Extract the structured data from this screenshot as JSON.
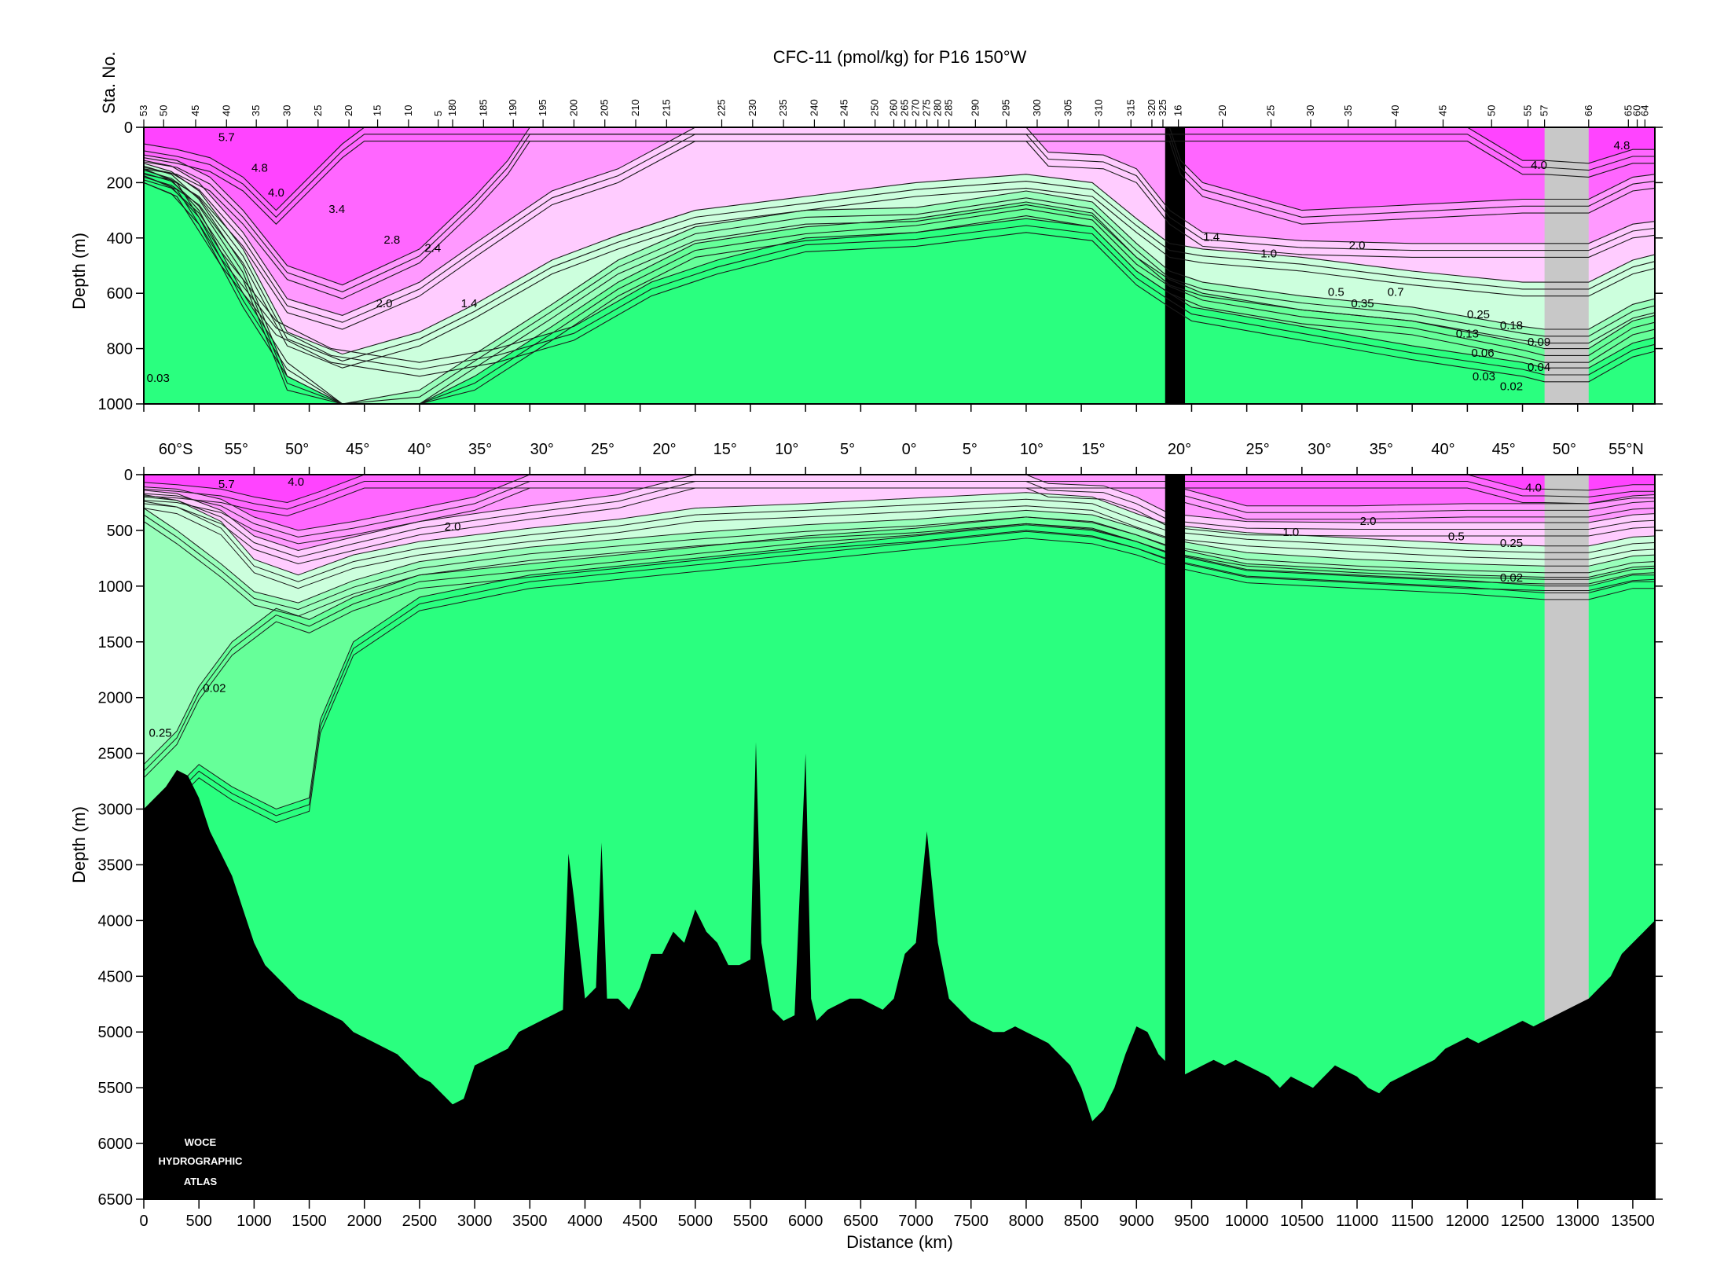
{
  "chart_data": {
    "type": "contour-section",
    "title": "CFC-11 (pmol/kg) for P16 150°W",
    "xlabel": "Distance (km)",
    "ylabel": "Depth (m)",
    "station_axis_label": "Sta. No.",
    "xlim": [
      0,
      13700
    ],
    "x_ticks": [
      0,
      500,
      1000,
      1500,
      2000,
      2500,
      3000,
      3500,
      4000,
      4500,
      5000,
      5500,
      6000,
      6500,
      7000,
      7500,
      8000,
      8500,
      9000,
      9500,
      10000,
      10500,
      11000,
      11500,
      12000,
      12500,
      13000,
      13500
    ],
    "colors": {
      "deep_magenta": "#ff44ff",
      "magenta": "#ff66ff",
      "light_magenta": "#ff99ff",
      "pale_magenta": "#ffccff",
      "pale_green": "#ccffdd",
      "light_green": "#99ffbb",
      "mid_green": "#66ff99",
      "green": "#2aff7f",
      "bathymetry": "#000000",
      "missing": "#c8c8c8",
      "contour": "#1a1a1a"
    },
    "stations": [
      {
        "label": "53",
        "km": 0
      },
      {
        "label": "50",
        "km": 180
      },
      {
        "label": "45",
        "km": 470
      },
      {
        "label": "40",
        "km": 750
      },
      {
        "label": "35",
        "km": 1020
      },
      {
        "label": "30",
        "km": 1300
      },
      {
        "label": "25",
        "km": 1580
      },
      {
        "label": "20",
        "km": 1860
      },
      {
        "label": "15",
        "km": 2120
      },
      {
        "label": "10",
        "km": 2400
      },
      {
        "label": "5",
        "km": 2670
      },
      {
        "label": "180",
        "km": 2800
      },
      {
        "label": "185",
        "km": 3080
      },
      {
        "label": "190",
        "km": 3350
      },
      {
        "label": "195",
        "km": 3620
      },
      {
        "label": "200",
        "km": 3900
      },
      {
        "label": "205",
        "km": 4180
      },
      {
        "label": "210",
        "km": 4460
      },
      {
        "label": "215",
        "km": 4740
      },
      {
        "label": "225",
        "km": 5240
      },
      {
        "label": "230",
        "km": 5520
      },
      {
        "label": "235",
        "km": 5800
      },
      {
        "label": "240",
        "km": 6080
      },
      {
        "label": "245",
        "km": 6350
      },
      {
        "label": "250",
        "km": 6630
      },
      {
        "label": "260",
        "km": 6800
      },
      {
        "label": "265",
        "km": 6900
      },
      {
        "label": "270",
        "km": 7000
      },
      {
        "label": "275",
        "km": 7100
      },
      {
        "label": "280",
        "km": 7200
      },
      {
        "label": "285",
        "km": 7300
      },
      {
        "label": "290",
        "km": 7540
      },
      {
        "label": "295",
        "km": 7820
      },
      {
        "label": "300",
        "km": 8100
      },
      {
        "label": "305",
        "km": 8380
      },
      {
        "label": "310",
        "km": 8660
      },
      {
        "label": "315",
        "km": 8950
      },
      {
        "label": "320",
        "km": 9140
      },
      {
        "label": "325",
        "km": 9240
      },
      {
        "label": "16",
        "km": 9380
      },
      {
        "label": "20",
        "km": 9780
      },
      {
        "label": "25",
        "km": 10220
      },
      {
        "label": "30",
        "km": 10580
      },
      {
        "label": "35",
        "km": 10920
      },
      {
        "label": "40",
        "km": 11350
      },
      {
        "label": "45",
        "km": 11780
      },
      {
        "label": "50",
        "km": 12220
      },
      {
        "label": "55",
        "km": 12550
      },
      {
        "label": "57",
        "km": 12700
      },
      {
        "label": "66",
        "km": 13100
      },
      {
        "label": "65",
        "km": 13460
      },
      {
        "label": "60",
        "km": 13540
      },
      {
        "label": "64",
        "km": 13610
      }
    ],
    "latitudes": [
      {
        "label": "60°S",
        "km": 290
      },
      {
        "label": "55°",
        "km": 840
      },
      {
        "label": "50°",
        "km": 1390
      },
      {
        "label": "45°",
        "km": 1940
      },
      {
        "label": "40°",
        "km": 2500
      },
      {
        "label": "35°",
        "km": 3050
      },
      {
        "label": "30°",
        "km": 3610
      },
      {
        "label": "25°",
        "km": 4160
      },
      {
        "label": "20°",
        "km": 4720
      },
      {
        "label": "15°",
        "km": 5270
      },
      {
        "label": "10°",
        "km": 5830
      },
      {
        "label": "5°",
        "km": 6380
      },
      {
        "label": "0°",
        "km": 6940
      },
      {
        "label": "5°",
        "km": 7490
      },
      {
        "label": "10°",
        "km": 8050
      },
      {
        "label": "15°",
        "km": 8610
      },
      {
        "label": "20°",
        "km": 9390
      },
      {
        "label": "25°",
        "km": 10100
      },
      {
        "label": "30°",
        "km": 10660
      },
      {
        "label": "35°",
        "km": 11220
      },
      {
        "label": "40°",
        "km": 11780
      },
      {
        "label": "45°",
        "km": 12330
      },
      {
        "label": "50°",
        "km": 12880
      },
      {
        "label": "55°N",
        "km": 13440
      }
    ],
    "panels": [
      {
        "name": "upper",
        "ylim": [
          1000,
          0
        ],
        "y_ticks": [
          0,
          200,
          400,
          600,
          800,
          1000
        ],
        "contour_labels": [
          {
            "text": "5.7",
            "km": 750,
            "depth": 50
          },
          {
            "text": "4.8",
            "km": 1050,
            "depth": 160
          },
          {
            "text": "4.0",
            "km": 1200,
            "depth": 250
          },
          {
            "text": "3.4",
            "km": 1750,
            "depth": 310
          },
          {
            "text": "2.8",
            "km": 2250,
            "depth": 420
          },
          {
            "text": "2.4",
            "km": 2620,
            "depth": 450
          },
          {
            "text": "2.0",
            "km": 2180,
            "depth": 650
          },
          {
            "text": "1.4",
            "km": 2950,
            "depth": 650
          },
          {
            "text": "0.03",
            "km": 130,
            "depth": 920
          },
          {
            "text": "1.4",
            "km": 9680,
            "depth": 410
          },
          {
            "text": "1.0",
            "km": 10200,
            "depth": 470
          },
          {
            "text": "2.0",
            "km": 11000,
            "depth": 440
          },
          {
            "text": "4.0",
            "km": 12650,
            "depth": 150
          },
          {
            "text": "4.8",
            "km": 13400,
            "depth": 80
          },
          {
            "text": "0.5",
            "km": 10810,
            "depth": 610
          },
          {
            "text": "0.7",
            "km": 11350,
            "depth": 610
          },
          {
            "text": "0.35",
            "km": 11050,
            "depth": 650
          },
          {
            "text": "0.25",
            "km": 12100,
            "depth": 690
          },
          {
            "text": "0.18",
            "km": 12400,
            "depth": 730
          },
          {
            "text": "0.13",
            "km": 12000,
            "depth": 760
          },
          {
            "text": "0.09",
            "km": 12650,
            "depth": 790
          },
          {
            "text": "0.06",
            "km": 12140,
            "depth": 830
          },
          {
            "text": "0.04",
            "km": 12650,
            "depth": 880
          },
          {
            "text": "0.03",
            "km": 12150,
            "depth": 915
          },
          {
            "text": "0.02",
            "km": 12400,
            "depth": 950
          }
        ]
      },
      {
        "name": "lower",
        "ylim": [
          6500,
          0
        ],
        "y_ticks": [
          0,
          500,
          1000,
          1500,
          2000,
          2500,
          3000,
          3500,
          4000,
          4500,
          5000,
          5500,
          6000,
          6500
        ],
        "contour_labels": [
          {
            "text": "5.7",
            "km": 750,
            "depth": 120
          },
          {
            "text": "4.0",
            "km": 1380,
            "depth": 100
          },
          {
            "text": "2.0",
            "km": 2800,
            "depth": 500
          },
          {
            "text": "0.02",
            "km": 640,
            "depth": 1950
          },
          {
            "text": "0.25",
            "km": 150,
            "depth": 2350
          },
          {
            "text": "4.0",
            "km": 12600,
            "depth": 150
          },
          {
            "text": "2.0",
            "km": 11100,
            "depth": 450
          },
          {
            "text": "1.0",
            "km": 10400,
            "depth": 550
          },
          {
            "text": "0.5",
            "km": 11900,
            "depth": 590
          },
          {
            "text": "0.25",
            "km": 12400,
            "depth": 650
          },
          {
            "text": "0.02",
            "km": 12400,
            "depth": 960
          }
        ]
      }
    ],
    "bathymetry_depth_m": [
      [
        0,
        3000
      ],
      [
        100,
        2900
      ],
      [
        200,
        2800
      ],
      [
        300,
        2650
      ],
      [
        400,
        2700
      ],
      [
        500,
        2900
      ],
      [
        600,
        3200
      ],
      [
        700,
        3400
      ],
      [
        800,
        3600
      ],
      [
        900,
        3900
      ],
      [
        1000,
        4200
      ],
      [
        1100,
        4400
      ],
      [
        1200,
        4500
      ],
      [
        1300,
        4600
      ],
      [
        1400,
        4700
      ],
      [
        1500,
        4750
      ],
      [
        1600,
        4800
      ],
      [
        1700,
        4850
      ],
      [
        1800,
        4900
      ],
      [
        1900,
        5000
      ],
      [
        2000,
        5050
      ],
      [
        2100,
        5100
      ],
      [
        2200,
        5150
      ],
      [
        2300,
        5200
      ],
      [
        2400,
        5300
      ],
      [
        2500,
        5400
      ],
      [
        2600,
        5450
      ],
      [
        2700,
        5550
      ],
      [
        2800,
        5650
      ],
      [
        2900,
        5600
      ],
      [
        3000,
        5300
      ],
      [
        3100,
        5250
      ],
      [
        3200,
        5200
      ],
      [
        3300,
        5150
      ],
      [
        3400,
        5000
      ],
      [
        3500,
        4950
      ],
      [
        3600,
        4900
      ],
      [
        3700,
        4850
      ],
      [
        3800,
        4800
      ],
      [
        3850,
        3400
      ],
      [
        3900,
        3800
      ],
      [
        4000,
        4700
      ],
      [
        4100,
        4600
      ],
      [
        4150,
        3300
      ],
      [
        4200,
        4700
      ],
      [
        4300,
        4700
      ],
      [
        4400,
        4800
      ],
      [
        4500,
        4600
      ],
      [
        4600,
        4300
      ],
      [
        4700,
        4300
      ],
      [
        4800,
        4100
      ],
      [
        4900,
        4200
      ],
      [
        5000,
        3900
      ],
      [
        5100,
        4100
      ],
      [
        5200,
        4200
      ],
      [
        5300,
        4400
      ],
      [
        5400,
        4400
      ],
      [
        5500,
        4350
      ],
      [
        5550,
        2400
      ],
      [
        5600,
        4200
      ],
      [
        5700,
        4800
      ],
      [
        5800,
        4900
      ],
      [
        5900,
        4850
      ],
      [
        6000,
        2500
      ],
      [
        6050,
        4700
      ],
      [
        6100,
        4900
      ],
      [
        6200,
        4800
      ],
      [
        6300,
        4750
      ],
      [
        6400,
        4700
      ],
      [
        6500,
        4700
      ],
      [
        6600,
        4750
      ],
      [
        6700,
        4800
      ],
      [
        6800,
        4700
      ],
      [
        6900,
        4300
      ],
      [
        7000,
        4200
      ],
      [
        7100,
        3200
      ],
      [
        7200,
        4200
      ],
      [
        7300,
        4700
      ],
      [
        7400,
        4800
      ],
      [
        7500,
        4900
      ],
      [
        7600,
        4950
      ],
      [
        7700,
        5000
      ],
      [
        7800,
        5000
      ],
      [
        7900,
        4950
      ],
      [
        8000,
        5000
      ],
      [
        8100,
        5050
      ],
      [
        8200,
        5100
      ],
      [
        8300,
        5200
      ],
      [
        8400,
        5300
      ],
      [
        8500,
        5500
      ],
      [
        8600,
        5800
      ],
      [
        8700,
        5700
      ],
      [
        8800,
        5500
      ],
      [
        8900,
        5200
      ],
      [
        9000,
        4950
      ],
      [
        9100,
        5000
      ],
      [
        9200,
        5200
      ],
      [
        9300,
        5300
      ],
      [
        9400,
        5400
      ],
      [
        9500,
        5350
      ],
      [
        9600,
        5300
      ],
      [
        9700,
        5250
      ],
      [
        9800,
        5300
      ],
      [
        9900,
        5250
      ],
      [
        10000,
        5300
      ],
      [
        10100,
        5350
      ],
      [
        10200,
        5400
      ],
      [
        10300,
        5500
      ],
      [
        10400,
        5400
      ],
      [
        10500,
        5450
      ],
      [
        10600,
        5500
      ],
      [
        10700,
        5400
      ],
      [
        10800,
        5300
      ],
      [
        10900,
        5350
      ],
      [
        11000,
        5400
      ],
      [
        11100,
        5500
      ],
      [
        11200,
        5550
      ],
      [
        11300,
        5450
      ],
      [
        11400,
        5400
      ],
      [
        11500,
        5350
      ],
      [
        11600,
        5300
      ],
      [
        11700,
        5250
      ],
      [
        11800,
        5150
      ],
      [
        11900,
        5100
      ],
      [
        12000,
        5050
      ],
      [
        12100,
        5100
      ],
      [
        12200,
        5050
      ],
      [
        12300,
        5000
      ],
      [
        12400,
        4950
      ],
      [
        12500,
        4900
      ],
      [
        12600,
        4950
      ],
      [
        12700,
        4900
      ],
      [
        12900,
        4800
      ],
      [
        13100,
        4700
      ],
      [
        13200,
        4600
      ],
      [
        13300,
        4500
      ],
      [
        13400,
        4300
      ],
      [
        13500,
        4200
      ],
      [
        13600,
        4100
      ],
      [
        13700,
        4000
      ]
    ],
    "seamount_gap_km": [
      9260,
      9440
    ],
    "missing_data_km": [
      12700,
      13100
    ],
    "logo_lines": [
      "WOCE",
      "HYDROGRAPHIC",
      "ATLAS"
    ]
  }
}
